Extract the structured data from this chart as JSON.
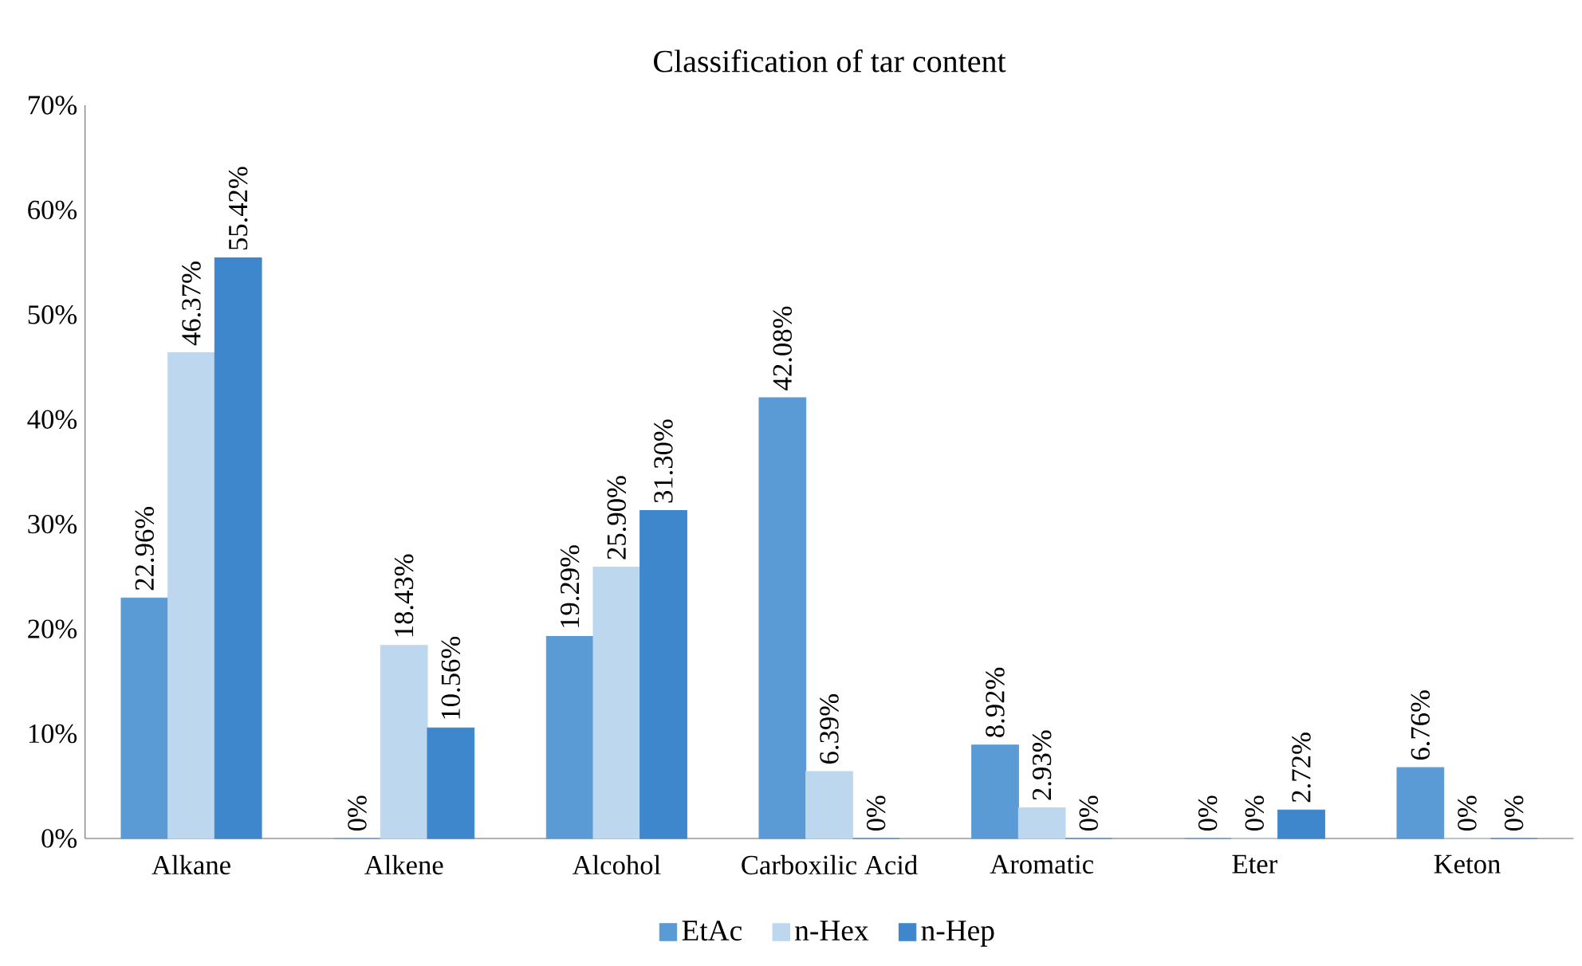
{
  "chart_data": {
    "type": "bar",
    "title": "Classification of tar content",
    "categories": [
      "Alkane",
      "Alkene",
      "Alcohol",
      "Carboxilic Acid",
      "Aromatic",
      "Eter",
      "Keton"
    ],
    "series": [
      {
        "name": "EtAc",
        "color": "#5b9bd5",
        "values": [
          22.96,
          0,
          19.29,
          42.08,
          8.92,
          0,
          6.76
        ],
        "value_labels": [
          "22.96%",
          "0%",
          "19.29%",
          "42.08%",
          "8.92%",
          "0%",
          "6.76%"
        ]
      },
      {
        "name": "n-Hex",
        "color": "#bdd7ee",
        "values": [
          46.37,
          18.43,
          25.9,
          6.39,
          2.93,
          0,
          0
        ],
        "value_labels": [
          "46.37%",
          "18.43%",
          "25.90%",
          "6.39%",
          "2.93%",
          "0%",
          "0%"
        ]
      },
      {
        "name": "n-Hep",
        "color": "#3f87cc",
        "values": [
          55.42,
          10.56,
          31.3,
          0,
          0,
          2.72,
          0
        ],
        "value_labels": [
          "55.42%",
          "10.56%",
          "31.30%",
          "0%",
          "0%",
          "2.72%",
          "0%"
        ]
      }
    ],
    "ylim": [
      0,
      70
    ],
    "yticks": [
      {
        "value": 0,
        "label": "0%"
      },
      {
        "value": 10,
        "label": "10%"
      },
      {
        "value": 20,
        "label": "20%"
      },
      {
        "value": 30,
        "label": "30%"
      },
      {
        "value": 40,
        "label": "40%"
      },
      {
        "value": 50,
        "label": "50%"
      },
      {
        "value": 60,
        "label": "60%"
      },
      {
        "value": 70,
        "label": "70%"
      }
    ],
    "grid": false,
    "legend": "bottom"
  }
}
